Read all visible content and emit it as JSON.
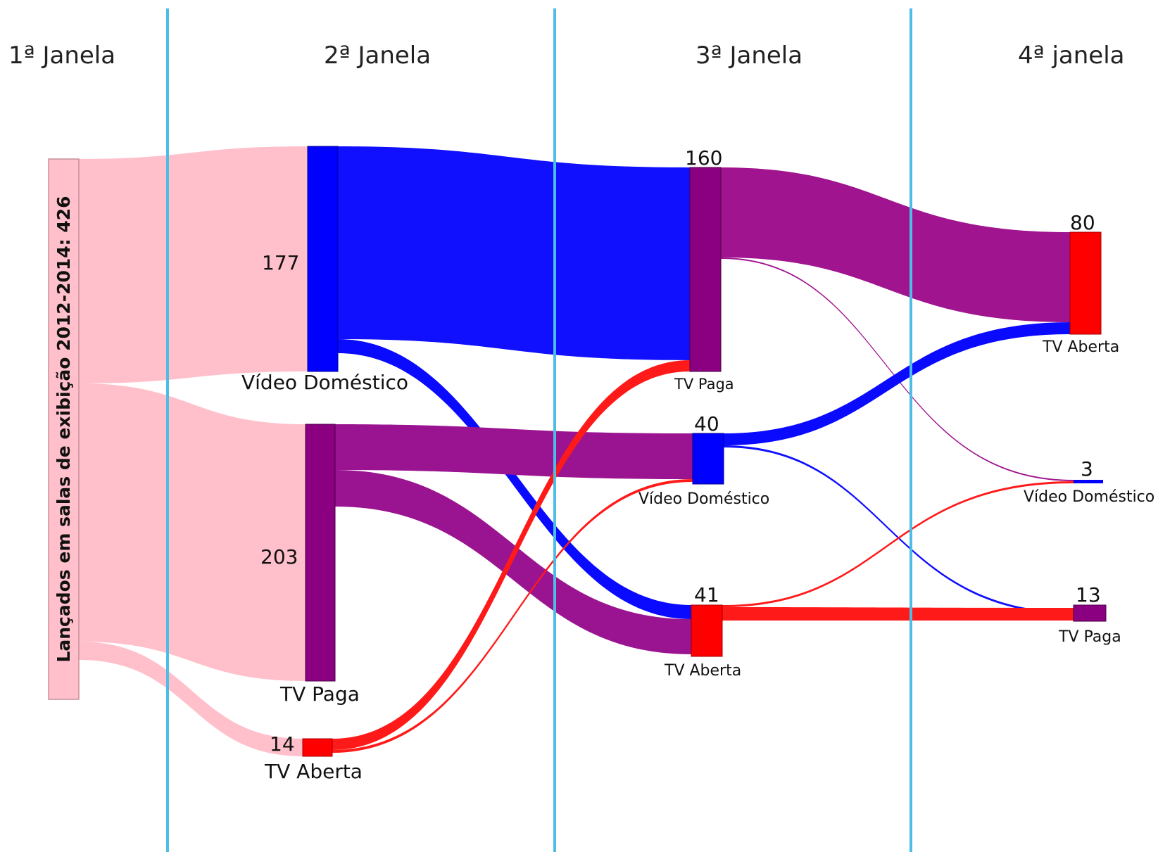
{
  "headers": [
    "1ª Janela",
    "2ª Janela",
    "3ª Janela",
    "4ª janela"
  ],
  "colors": {
    "divider": "#4dbde6",
    "source": "#ffc0cb",
    "video_domestico": "#0000ff",
    "tv_paga": "#8b0080",
    "tv_aberta": "#ff0000"
  },
  "chart_data": {
    "type": "sankey",
    "source": {
      "label": "Lançados em salas de exibição 2012-2014: 426",
      "value": 426
    },
    "nodes": [
      {
        "id": "w2_video",
        "window": 2,
        "label": "Vídeo Doméstico",
        "value": "177",
        "category": "video_domestico"
      },
      {
        "id": "w2_paga",
        "window": 2,
        "label": "TV Paga",
        "value": "203",
        "category": "tv_paga"
      },
      {
        "id": "w2_aberta",
        "window": 2,
        "label": "TV Aberta",
        "value": "14",
        "category": "tv_aberta"
      },
      {
        "id": "w3_paga",
        "window": 3,
        "label": "TV Paga",
        "value": "160",
        "category": "tv_paga"
      },
      {
        "id": "w3_video",
        "window": 3,
        "label": "Vídeo Doméstico",
        "value": "40",
        "category": "video_domestico"
      },
      {
        "id": "w3_aberta",
        "window": 3,
        "label": "TV Aberta",
        "value": "41",
        "category": "tv_aberta"
      },
      {
        "id": "w4_aberta",
        "window": 4,
        "label": "TV Aberta",
        "value": "80",
        "category": "tv_aberta"
      },
      {
        "id": "w4_video",
        "window": 4,
        "label": "Vídeo Doméstico",
        "value": "3",
        "category": "video_domestico"
      },
      {
        "id": "w4_paga",
        "window": 4,
        "label": "TV Paga",
        "value": "13",
        "category": "tv_paga"
      }
    ],
    "links": [
      {
        "from": "source",
        "to": "w2_video",
        "value": 177
      },
      {
        "from": "source",
        "to": "w2_paga",
        "value": 203
      },
      {
        "from": "source",
        "to": "w2_aberta",
        "value": 14
      },
      {
        "from": "w2_video",
        "to": "w3_paga",
        "value": 149
      },
      {
        "from": "w2_video",
        "to": "w3_aberta",
        "value": 13
      },
      {
        "from": "w2_paga",
        "to": "w3_video",
        "value": 35
      },
      {
        "from": "w2_paga",
        "to": "w3_aberta",
        "value": 28
      },
      {
        "from": "w2_aberta",
        "to": "w3_paga",
        "value": 9
      },
      {
        "from": "w2_aberta",
        "to": "w3_video",
        "value": 2
      },
      {
        "from": "w3_paga",
        "to": "w4_aberta",
        "value": 71
      },
      {
        "from": "w3_paga",
        "to": "w4_video",
        "value": 1
      },
      {
        "from": "w3_video",
        "to": "w4_aberta",
        "value": 9
      },
      {
        "from": "w3_video",
        "to": "w4_paga",
        "value": 1
      },
      {
        "from": "w3_aberta",
        "to": "w4_video",
        "value": 1
      },
      {
        "from": "w3_aberta",
        "to": "w4_paga",
        "value": 12
      }
    ]
  }
}
